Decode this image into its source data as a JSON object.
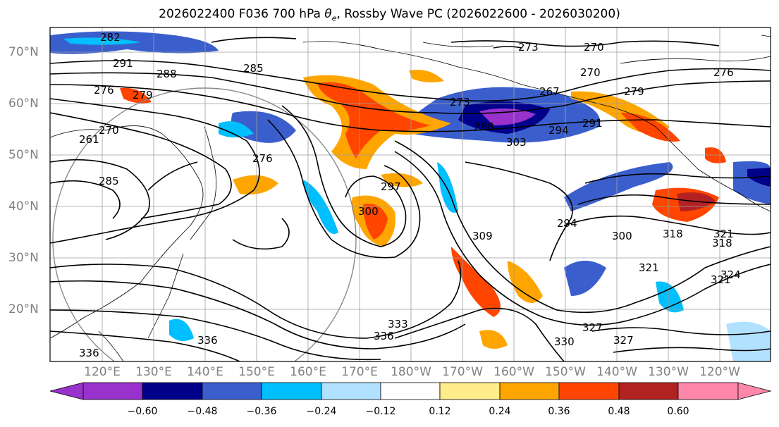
{
  "title": {
    "prefix": "2026022400 F036 700 hPa ",
    "symbol": "θ",
    "subscript": "e",
    "suffix": ", Rossby Wave PC (2026022600 - 2026030200)"
  },
  "map": {
    "lat_labels": [
      "70°N",
      "60°N",
      "50°N",
      "40°N",
      "30°N",
      "20°N"
    ],
    "lon_labels": [
      "120°E",
      "130°E",
      "140°E",
      "150°E",
      "160°E",
      "170°E",
      "180°W",
      "170°W",
      "160°W",
      "150°W",
      "140°W",
      "130°W",
      "120°W"
    ],
    "contour_labels": [
      "282",
      "291",
      "288",
      "285",
      "276",
      "279",
      "273",
      "270",
      "267",
      "270",
      "279",
      "276",
      "261",
      "270",
      "285",
      "273",
      "288",
      "294",
      "291",
      "303",
      "276",
      "297",
      "300",
      "309",
      "294",
      "300",
      "318",
      "321",
      "321",
      "321",
      "324",
      "327",
      "318",
      "333",
      "336",
      "336",
      "330",
      "327",
      "336"
    ],
    "contour_color": "#000000",
    "coastline_color": "#000000",
    "gridline_color": "#9e9e9e"
  },
  "colorbar": {
    "ticks": [
      "−0.60",
      "−0.48",
      "−0.36",
      "−0.24",
      "−0.12",
      "0.12",
      "0.24",
      "0.36",
      "0.48",
      "0.60"
    ],
    "colors": [
      "#9932cc",
      "#00008b",
      "#3a5fcd",
      "#00bfff",
      "#b0e2ff",
      "#ffffff",
      "#ffec8b",
      "#ffa500",
      "#ff4500",
      "#b22222",
      "#ff88aa"
    ],
    "under_color": "#9932cc",
    "over_color": "#ff88aa"
  }
}
